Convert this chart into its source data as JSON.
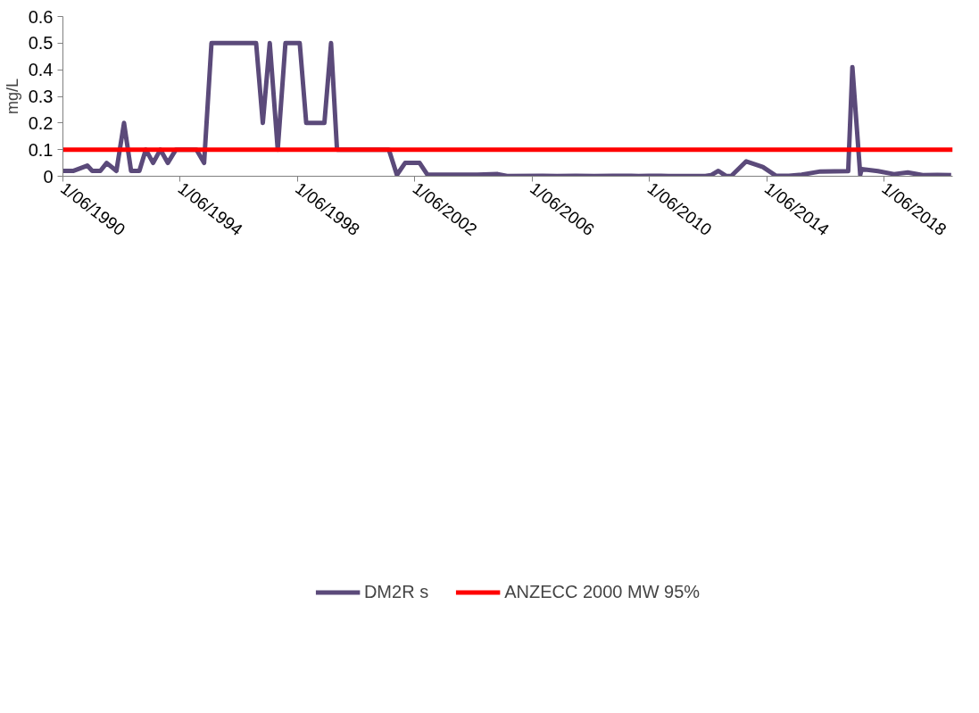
{
  "chart_data": {
    "type": "line",
    "ylabel": "mg/L",
    "xlim": [
      "1990-06-01",
      "2020-10-01"
    ],
    "xticks": [
      {
        "value": "1990-06-01",
        "label": "1/06/1990"
      },
      {
        "value": "1994-06-01",
        "label": "1/06/1994"
      },
      {
        "value": "1998-06-01",
        "label": "1/06/1998"
      },
      {
        "value": "2002-06-01",
        "label": "1/06/2002"
      },
      {
        "value": "2006-06-01",
        "label": "1/06/2006"
      },
      {
        "value": "2010-06-01",
        "label": "1/06/2010"
      },
      {
        "value": "2014-06-01",
        "label": "1/06/2014"
      },
      {
        "value": "2018-06-01",
        "label": "1/06/2018"
      }
    ],
    "ylim": [
      0,
      0.6
    ],
    "yticks": [
      0,
      0.1,
      0.2,
      0.3,
      0.4,
      0.5,
      0.6
    ],
    "grid": false,
    "legend": "bottom",
    "line_style": "solid",
    "marker": "none",
    "series": [
      {
        "name": "DM2R s",
        "color": "#5b4a7a",
        "x": [
          "1990-06-01",
          "1990-10-05",
          "1991-04-01",
          "1991-06-01",
          "1991-09-10",
          "1991-11-28",
          "1992-03-28",
          "1992-07-01",
          "1992-09-27",
          "1993-01-08",
          "1993-03-29",
          "1993-06-28",
          "1993-09-27",
          "1993-12-28",
          "1994-04-08",
          "1994-12-20",
          "1995-03-25",
          "1995-06-25",
          "1997-01-01",
          "1997-03-25",
          "1997-06-20",
          "1997-09-27",
          "1998-01-01",
          "1998-06-28",
          "1998-09-17",
          "1999-05-01",
          "1999-07-23",
          "1999-10-05",
          "2001-07-12",
          "2001-10-20",
          "2002-01-30",
          "2002-07-30",
          "2002-11-03",
          "2004-07-16",
          "2005-03-28",
          "2005-07-23",
          "2006-10-05",
          "2007-04-05",
          "2007-11-24",
          "2008-07-12",
          "2009-03-01",
          "2009-10-15",
          "2010-01-15",
          "2010-06-01",
          "2010-10-20",
          "2011-01-22",
          "2011-12-10",
          "2012-04-27",
          "2012-07-05",
          "2012-10-05",
          "2013-01-08",
          "2013-03-15",
          "2013-09-17",
          "2014-04-12",
          "2014-09-20",
          "2015-03-03",
          "2015-08-10",
          "2016-03-28",
          "2017-03-10",
          "2017-05-01",
          "2017-08-07",
          "2017-08-25",
          "2018-03-15",
          "2018-10-01",
          "2019-03-22",
          "2019-09-24",
          "2020-03-25",
          "2020-09-12"
        ],
        "values": [
          0.02,
          0.02,
          0.04,
          0.02,
          0.02,
          0.05,
          0.02,
          0.2,
          0.02,
          0.02,
          0.1,
          0.05,
          0.1,
          0.05,
          0.1,
          0.1,
          0.05,
          0.5,
          0.5,
          0.2,
          0.5,
          0.1,
          0.5,
          0.5,
          0.2,
          0.2,
          0.5,
          0.1,
          0.1,
          0.005,
          0.05,
          0.05,
          0.006,
          0.006,
          0.008,
          0.001,
          0.002,
          0.001,
          0.002,
          0.001,
          0.002,
          0.002,
          0.001,
          0.002,
          0.002,
          0.001,
          0.001,
          0.001,
          0.004,
          0.02,
          0.001,
          0.001,
          0.056,
          0.035,
          0.002,
          0.002,
          0.006,
          0.018,
          0.019,
          0.41,
          0.005,
          0.027,
          0.019,
          0.008,
          0.014,
          0.004,
          0.005,
          0.004
        ]
      },
      {
        "name": "ANZECC 2000 MW 95%",
        "color": "#ff0000",
        "x": [
          "1990-06-01",
          "2020-10-01"
        ],
        "values": [
          0.1,
          0.1
        ]
      }
    ]
  }
}
